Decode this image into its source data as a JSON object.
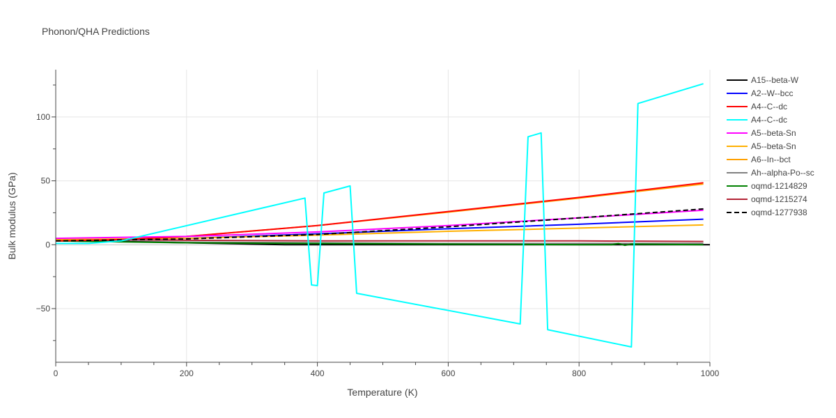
{
  "chart_data": {
    "type": "line",
    "title": "Phonon/QHA Predictions",
    "xlabel": "Temperature (K)",
    "ylabel": "Bulk modulus (GPa)",
    "xlim": [
      0,
      1000
    ],
    "ylim": [
      -92,
      137
    ],
    "xticks": [
      0,
      200,
      400,
      600,
      800,
      1000
    ],
    "yticks": [
      -50,
      0,
      50,
      100
    ],
    "ytick_labels": [
      "−50",
      "0",
      "50",
      "100"
    ],
    "grid": true,
    "legend_position": "right",
    "series": [
      {
        "name": "A15--beta-W",
        "color": "#000000",
        "dash": false,
        "points": [
          [
            0,
            3
          ],
          [
            100,
            2.5
          ],
          [
            200,
            1.5
          ],
          [
            300,
            0.5
          ],
          [
            350,
            0
          ],
          [
            1000,
            0
          ]
        ]
      },
      {
        "name": "A2--W--bcc",
        "color": "#0000ff",
        "dash": false,
        "points": [
          [
            0,
            3
          ],
          [
            200,
            5
          ],
          [
            400,
            8.5
          ],
          [
            600,
            12.5
          ],
          [
            800,
            16
          ],
          [
            990,
            20
          ]
        ]
      },
      {
        "name": "A4--C--dc",
        "color": "#ff0000",
        "dash": false,
        "points": [
          [
            0,
            3
          ],
          [
            100,
            4
          ],
          [
            200,
            6.5
          ],
          [
            400,
            15
          ],
          [
            600,
            26
          ],
          [
            800,
            37
          ],
          [
            990,
            48.5
          ]
        ]
      },
      {
        "name": "A4--C--dc",
        "color": "#00ffff",
        "dash": false,
        "points": [
          [
            0,
            1
          ],
          [
            50,
            1
          ],
          [
            100,
            3
          ],
          [
            381,
            36.5
          ],
          [
            391,
            -31.5
          ],
          [
            400,
            -32
          ],
          [
            410,
            40.5
          ],
          [
            450,
            46
          ],
          [
            460,
            -38
          ],
          [
            710,
            -62
          ],
          [
            722,
            84.5
          ],
          [
            742,
            87.5
          ],
          [
            752,
            -66.5
          ],
          [
            880,
            -80
          ],
          [
            890,
            110.5
          ],
          [
            990,
            126
          ]
        ]
      },
      {
        "name": "A5--beta-Sn",
        "color": "#ff00ff",
        "dash": false,
        "points": [
          [
            0,
            5
          ],
          [
            200,
            6.5
          ],
          [
            400,
            10
          ],
          [
            600,
            15
          ],
          [
            800,
            21
          ],
          [
            990,
            27
          ]
        ]
      },
      {
        "name": "A5--beta-Sn",
        "color": "#ffb000",
        "dash": false,
        "points": [
          [
            0,
            4
          ],
          [
            200,
            5
          ],
          [
            400,
            7.5
          ],
          [
            600,
            10.5
          ],
          [
            800,
            13
          ],
          [
            990,
            15.5
          ]
        ]
      },
      {
        "name": "A6--In--bct",
        "color": "#ffa000",
        "dash": false,
        "points": [
          [
            0,
            3
          ],
          [
            100,
            4
          ],
          [
            200,
            6.5
          ],
          [
            400,
            15
          ],
          [
            600,
            25.5
          ],
          [
            800,
            36.5
          ],
          [
            990,
            47.5
          ]
        ]
      },
      {
        "name": "Ah--alpha-Po--sc",
        "color": "#808080",
        "dash": false,
        "points": [
          [
            0,
            3
          ],
          [
            200,
            2
          ],
          [
            400,
            1.5
          ],
          [
            600,
            1
          ],
          [
            800,
            1
          ],
          [
            990,
            1
          ]
        ]
      },
      {
        "name": "oqmd-1214829",
        "color": "#008000",
        "dash": false,
        "points": [
          [
            0,
            3
          ],
          [
            200,
            1.5
          ],
          [
            400,
            1
          ],
          [
            600,
            0.5
          ],
          [
            800,
            0
          ],
          [
            850,
            0
          ],
          [
            860,
            1
          ],
          [
            870,
            -0.5
          ],
          [
            880,
            0.5
          ],
          [
            990,
            0
          ]
        ]
      },
      {
        "name": "oqmd-1215274",
        "color": "#b22234",
        "dash": false,
        "points": [
          [
            0,
            4
          ],
          [
            200,
            3.5
          ],
          [
            400,
            3
          ],
          [
            600,
            3
          ],
          [
            800,
            3
          ],
          [
            990,
            2.5
          ]
        ]
      },
      {
        "name": "oqmd-1277938",
        "color": "#000000",
        "dash": true,
        "points": [
          [
            0,
            3
          ],
          [
            200,
            4.5
          ],
          [
            400,
            8
          ],
          [
            600,
            14
          ],
          [
            800,
            21
          ],
          [
            990,
            28
          ]
        ]
      }
    ]
  }
}
